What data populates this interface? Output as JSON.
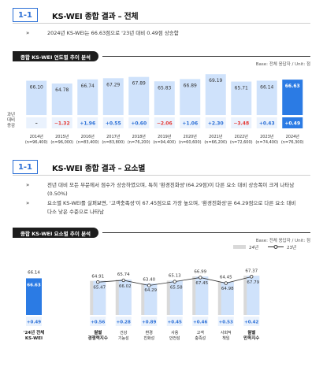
{
  "section1": {
    "number": "1-1",
    "title": "KS-WEI 종합 결과 – 전체",
    "bullet_mark": "»",
    "bullet": "2024년 KS-WEI는 66.63점으로 '23년 대비 0.49점 상승함",
    "chart_title": "종합 KS-WEI 연도별 추이 분석",
    "base_note": "Base: 전체 응답자 / Unit: 점"
  },
  "section2": {
    "number": "1-1",
    "title": "KS-WEI 종합 결과 – 요소별",
    "bullet_mark": "»",
    "bullets": [
      "전년 대비 모든 부문에서 점수가 상승하였으며, 특히 '환경친화성'(64.29점)이 다른 요소 대비 상승폭이 크게 나타남",
      "(0.50%)",
      "요소별 KS-WEI를 살펴보면, '고객충족성'이 67.45점으로 가장 높으며, '환경친화성'은 64.29점으로 다른 요소 대비",
      "다소 낮은 수준으로 나타남"
    ],
    "chart_title": "종합 KS-WEI 요소별 추이 분석",
    "base_note": "Base: 전체 응답자 / Unit: 점"
  },
  "chart_data": [
    {
      "type": "bar",
      "title": "종합 KS-WEI 연도별 추이 분석",
      "row_label": [
        "과년",
        "대비",
        "증감"
      ],
      "categories": [
        "2014년\n(n=96,400)",
        "2015년\n(n=96,000)",
        "2016년\n(n=83,400)",
        "2017년\n(n=83,800)",
        "2018년\n(n=76,200)",
        "2019년\n(n=94,400)",
        "2020년\n(n=60,600)",
        "2021년\n(n=66,200)",
        "2022년\n(n=72,600)",
        "2023년\n(n=74,400)",
        "2024년\n(n=76,300)"
      ],
      "values": [
        66.1,
        64.78,
        66.74,
        67.29,
        67.89,
        65.83,
        66.89,
        69.19,
        65.71,
        66.14,
        66.63
      ],
      "changes": [
        "–",
        "−1.32",
        "+1.96",
        "+0.55",
        "+0.60",
        "−2.06",
        "+1.06",
        "+2.30",
        "−3.48",
        "+0.43",
        "+0.49"
      ],
      "change_colors": [
        "#333333",
        "#e53935",
        "#2b6fd6",
        "#2b6fd6",
        "#2b6fd6",
        "#e53935",
        "#2b6fd6",
        "#2b6fd6",
        "#e53935",
        "#2b6fd6",
        "#2b6fd6"
      ],
      "highlight_index": 10,
      "colors": {
        "bar": "#cfe2fb",
        "highlight": "#2b7be4",
        "row": "#eaf2fd",
        "row_highlight": "#2b7be4"
      }
    },
    {
      "type": "bar",
      "title": "종합 KS-WEI 요소별 추이 분석",
      "legend": [
        "24년",
        "23년"
      ],
      "summary": {
        "label": "'24년 전체\nKS-WEI",
        "value_23": 66.14,
        "value_24": 66.63,
        "change": "+0.49"
      },
      "categories": [
        "월별\n경쟁력지수",
        "건강\n기능성",
        "환경\n친화성",
        "사용\n안전성",
        "고객\n충족성",
        "사회적\n책임",
        "월별\n만족지수"
      ],
      "bold_categories": [
        0,
        6
      ],
      "series": [
        {
          "name": "24년",
          "values": [
            65.47,
            66.02,
            64.29,
            65.58,
            67.45,
            64.98,
            67.79
          ]
        },
        {
          "name": "23년",
          "values": [
            64.91,
            65.74,
            63.4,
            65.13,
            66.99,
            64.45,
            67.37
          ]
        }
      ],
      "changes": [
        "+0.56",
        "+0.28",
        "+0.89",
        "+0.45",
        "+0.46",
        "+0.53",
        "+0.42"
      ],
      "colors": {
        "bar24": "#cfe2fb",
        "bar23": "#d9d9d9",
        "highlight": "#2b7be4",
        "line": "#333333",
        "change": "#2b6fd6"
      }
    }
  ]
}
